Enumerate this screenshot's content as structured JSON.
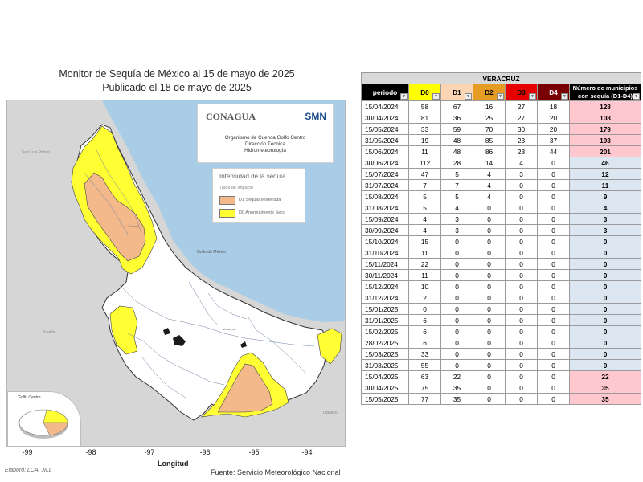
{
  "map": {
    "title_line1": "Monitor de Sequía de México al 15 de mayo de 2025",
    "title_line2": "Publicado el 18 de mayo de 2025",
    "logo_conagua": "CONAGUA",
    "logo_smn": "SMN",
    "org_line1": "Organismo de Cuenca Golfo Centro",
    "org_line2": "Dirección Técnica",
    "org_line3": "Hidrometeorología",
    "legend_title": "Intensidad de la sequía",
    "legend_subtitle": "Tipos de Impacto",
    "legend_items": [
      {
        "label": "D1 Sequía Moderada",
        "color": "#f3b98a"
      },
      {
        "label": "D0 Anormalmente Seco",
        "color": "#ffff33"
      }
    ],
    "pie_label": "Golfo Centro",
    "x_ticks": [
      "-99",
      "-98",
      "-97",
      "-96",
      "-95",
      "-94"
    ],
    "x_axis_title": "Longitud",
    "credit_left": "Elaboró: LCA, JILL",
    "credit_right": "Fuente: Servicio Meteorológico Nacional",
    "colors": {
      "sea": "#a9cde6",
      "land": "#ffffff",
      "outside": "#d6d6d6",
      "d0": "#ffff33",
      "d1": "#f3b98a"
    }
  },
  "table": {
    "region": "VERACRUZ",
    "headers": {
      "period": "periodo",
      "d0": "D0",
      "d1": "D1",
      "d2": "D2",
      "d3": "D3",
      "d4": "D4",
      "total": "Número de municipios con sequía (D1-D4)"
    },
    "rows": [
      {
        "date": "15/04/2024",
        "d0": "58",
        "d1": "67",
        "d2": "16",
        "d3": "27",
        "d4": "18",
        "total": "128"
      },
      {
        "date": "30/04/2024",
        "d0": "81",
        "d1": "36",
        "d2": "25",
        "d3": "27",
        "d4": "20",
        "total": "108"
      },
      {
        "date": "15/05/2024",
        "d0": "33",
        "d1": "59",
        "d2": "70",
        "d3": "30",
        "d4": "20",
        "total": "179"
      },
      {
        "date": "31/05/2024",
        "d0": "19",
        "d1": "48",
        "d2": "85",
        "d3": "23",
        "d4": "37",
        "total": "193"
      },
      {
        "date": "15/06/2024",
        "d0": "11",
        "d1": "48",
        "d2": "86",
        "d3": "23",
        "d4": "44",
        "total": "201"
      },
      {
        "date": "30/06/2024",
        "d0": "112",
        "d1": "28",
        "d2": "14",
        "d3": "4",
        "d4": "0",
        "total": "46"
      },
      {
        "date": "15/07/2024",
        "d0": "47",
        "d1": "5",
        "d2": "4",
        "d3": "3",
        "d4": "0",
        "total": "12"
      },
      {
        "date": "31/07/2024",
        "d0": "7",
        "d1": "7",
        "d2": "4",
        "d3": "0",
        "d4": "0",
        "total": "11"
      },
      {
        "date": "15/08/2024",
        "d0": "5",
        "d1": "5",
        "d2": "4",
        "d3": "0",
        "d4": "0",
        "total": "9"
      },
      {
        "date": "31/08/2024",
        "d0": "5",
        "d1": "4",
        "d2": "0",
        "d3": "0",
        "d4": "0",
        "total": "4"
      },
      {
        "date": "15/09/2024",
        "d0": "4",
        "d1": "3",
        "d2": "0",
        "d3": "0",
        "d4": "0",
        "total": "3"
      },
      {
        "date": "30/09/2024",
        "d0": "4",
        "d1": "3",
        "d2": "0",
        "d3": "0",
        "d4": "0",
        "total": "3"
      },
      {
        "date": "15/10/2024",
        "d0": "15",
        "d1": "0",
        "d2": "0",
        "d3": "0",
        "d4": "0",
        "total": "0"
      },
      {
        "date": "31/10/2024",
        "d0": "11",
        "d1": "0",
        "d2": "0",
        "d3": "0",
        "d4": "0",
        "total": "0"
      },
      {
        "date": "15/11/2024",
        "d0": "22",
        "d1": "0",
        "d2": "0",
        "d3": "0",
        "d4": "0",
        "total": "0"
      },
      {
        "date": "30/11/2024",
        "d0": "11",
        "d1": "0",
        "d2": "0",
        "d3": "0",
        "d4": "0",
        "total": "0"
      },
      {
        "date": "15/12/2024",
        "d0": "10",
        "d1": "0",
        "d2": "0",
        "d3": "0",
        "d4": "0",
        "total": "0"
      },
      {
        "date": "31/12/2024",
        "d0": "2",
        "d1": "0",
        "d2": "0",
        "d3": "0",
        "d4": "0",
        "total": "0"
      },
      {
        "date": "15/01/2025",
        "d0": "0",
        "d1": "0",
        "d2": "0",
        "d3": "0",
        "d4": "0",
        "total": "0"
      },
      {
        "date": "31/01/2025",
        "d0": "6",
        "d1": "0",
        "d2": "0",
        "d3": "0",
        "d4": "0",
        "total": "0"
      },
      {
        "date": "15/02/2025",
        "d0": "6",
        "d1": "0",
        "d2": "0",
        "d3": "0",
        "d4": "0",
        "total": "0"
      },
      {
        "date": "28/02/2025",
        "d0": "6",
        "d1": "0",
        "d2": "0",
        "d3": "0",
        "d4": "0",
        "total": "0"
      },
      {
        "date": "15/03/2025",
        "d0": "33",
        "d1": "0",
        "d2": "0",
        "d3": "0",
        "d4": "0",
        "total": "0"
      },
      {
        "date": "31/03/2025",
        "d0": "55",
        "d1": "0",
        "d2": "0",
        "d3": "0",
        "d4": "0",
        "total": "0"
      },
      {
        "date": "15/04/2025",
        "d0": "63",
        "d1": "22",
        "d2": "0",
        "d3": "0",
        "d4": "0",
        "total": "22"
      },
      {
        "date": "30/04/2025",
        "d0": "75",
        "d1": "35",
        "d2": "0",
        "d3": "0",
        "d4": "0",
        "total": "35"
      },
      {
        "date": "15/05/2025",
        "d0": "77",
        "d1": "35",
        "d2": "0",
        "d3": "0",
        "d4": "0",
        "total": "35"
      }
    ],
    "colors": {
      "high": "#ffc7ce",
      "low": "#dce6f1",
      "d0": "#ffff00",
      "d1": "#fcd5b4",
      "d2": "#e69b22",
      "d3": "#e60000",
      "d4": "#7a0000"
    }
  }
}
